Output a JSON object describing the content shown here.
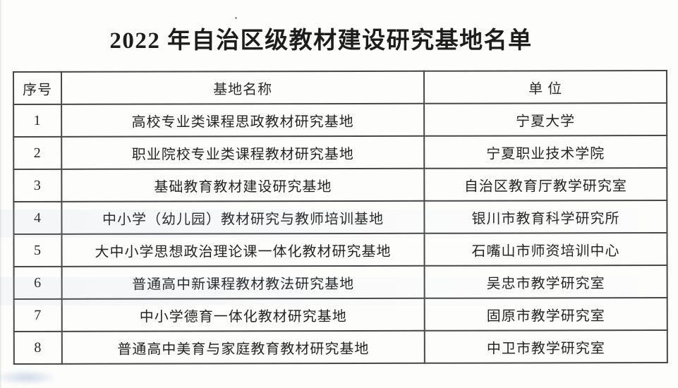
{
  "page": {
    "title": "2022 年自治区级教材建设研究基地名单"
  },
  "table": {
    "headers": {
      "no": "序号",
      "base": "基地名称",
      "unit": "单  位"
    },
    "rows": [
      {
        "no": "1",
        "base": "高校专业类课程思政教材研究基地",
        "unit": "宁夏大学"
      },
      {
        "no": "2",
        "base": "职业院校专业类课程教材研究基地",
        "unit": "宁夏职业技术学院"
      },
      {
        "no": "3",
        "base": "基础教育教材建设研究基地",
        "unit": "自治区教育厅教学研究室"
      },
      {
        "no": "4",
        "base": "中小学（幼儿园）教材研究与教师培训基地",
        "unit": "银川市教育科学研究所"
      },
      {
        "no": "5",
        "base": "大中小学思想政治理论课一体化教材研究基地",
        "unit": "石嘴山市师资培训中心"
      },
      {
        "no": "6",
        "base": "普通高中新课程教材教法研究基地",
        "unit": "吴忠市教学研究室"
      },
      {
        "no": "7",
        "base": "中小学德育一体化教材研究基地",
        "unit": "固原市教学研究室"
      },
      {
        "no": "8",
        "base": "普通高中美育与家庭教育教材研究基地",
        "unit": "中卫市教学研究室"
      }
    ]
  },
  "colors": {
    "background": "#fdfdfc",
    "border": "#474747",
    "text": "#242424",
    "title_text": "#1d1d1d",
    "scan_smudge_blue": "#96acd2"
  }
}
